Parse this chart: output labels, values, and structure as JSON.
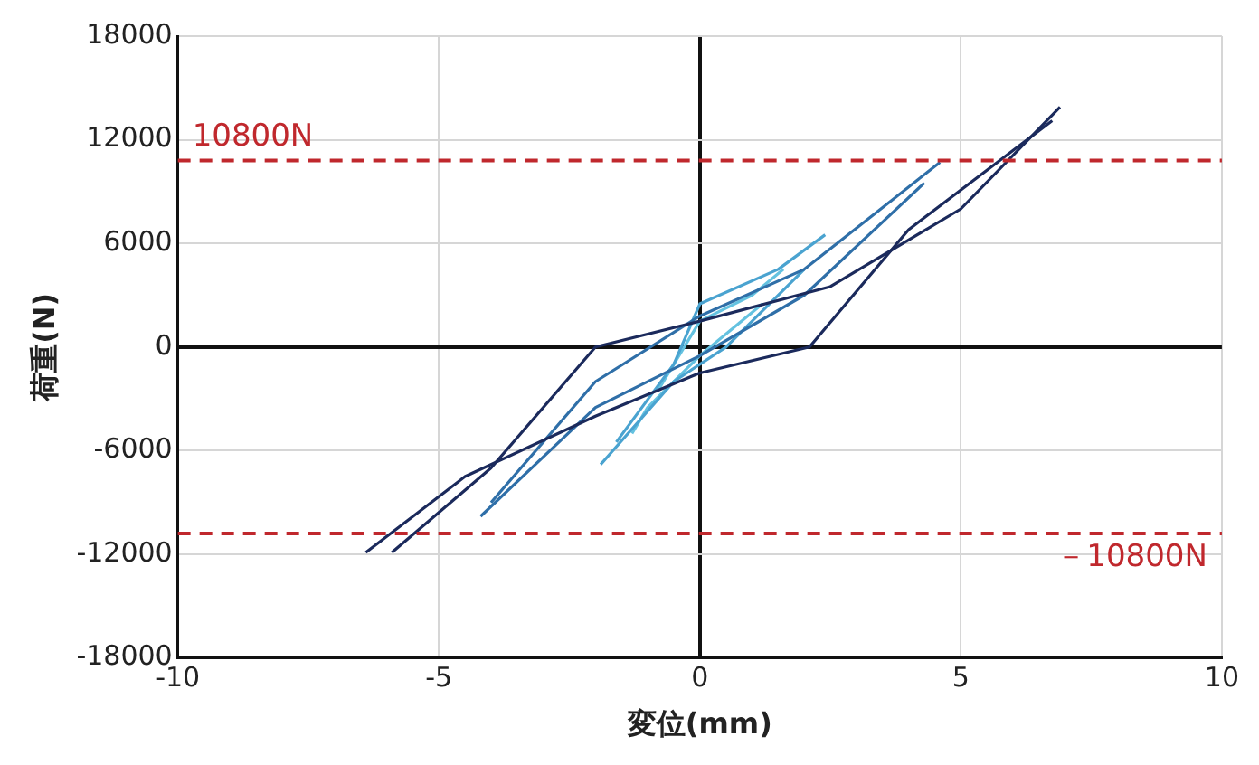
{
  "chart_data": {
    "type": "line",
    "xlabel": "変位(mm)",
    "ylabel": "荷重(N)",
    "xlim": [
      -10,
      10
    ],
    "xticks": [
      -10,
      -5,
      0,
      5,
      10
    ],
    "ylim": [
      -18000,
      18000
    ],
    "yticks": [
      -18000,
      -12000,
      -6000,
      0,
      6000,
      12000,
      18000
    ],
    "grid": true,
    "legend": false,
    "marker": "none",
    "line_style": "solid",
    "series": [
      {
        "color": "#1b2a5c",
        "x": [
          -5.9,
          -4,
          -2,
          0,
          2.5,
          5,
          6.9
        ],
        "values": [
          -11900,
          -7000,
          0,
          1500,
          3500,
          8000,
          13900
        ]
      },
      {
        "color": "#1b2a5c",
        "x": [
          -6.4,
          -4.5,
          -2,
          0,
          2.1,
          4,
          6.75
        ],
        "values": [
          -11900,
          -7500,
          -4000,
          -1500,
          0,
          6800,
          13100
        ]
      },
      {
        "color": "#2f6fa8",
        "x": [
          -4,
          -2,
          0,
          2,
          4.6
        ],
        "values": [
          -9000,
          -2000,
          1800,
          4500,
          10700
        ]
      },
      {
        "color": "#2f6fa8",
        "x": [
          -4.2,
          -2,
          0,
          2,
          4.3
        ],
        "values": [
          -9800,
          -3500,
          -500,
          3000,
          9500
        ]
      },
      {
        "color": "#4aa3d0",
        "x": [
          -1.6,
          -0.5,
          0,
          1.5,
          2.4
        ],
        "values": [
          -5500,
          -1000,
          2500,
          4500,
          6500
        ]
      },
      {
        "color": "#4aa3d0",
        "x": [
          -1.9,
          -0.5,
          0.5,
          2
        ],
        "values": [
          -6800,
          -2000,
          0,
          4500
        ]
      },
      {
        "color": "#64c2e0",
        "x": [
          -0.8,
          0,
          1,
          1.6
        ],
        "values": [
          -2500,
          1500,
          3000,
          4500
        ]
      },
      {
        "color": "#64c2e0",
        "x": [
          -1.3,
          -1,
          0,
          1.2
        ],
        "values": [
          -5000,
          -3500,
          -500,
          2500
        ]
      }
    ],
    "ref_lines": [
      {
        "axis": "y",
        "value": 10800,
        "label": "10800N",
        "color": "#c0282d",
        "line_style": "dashed"
      },
      {
        "axis": "y",
        "value": -10800,
        "label": "－10800N",
        "color": "#c0282d",
        "line_style": "dashed"
      }
    ]
  }
}
